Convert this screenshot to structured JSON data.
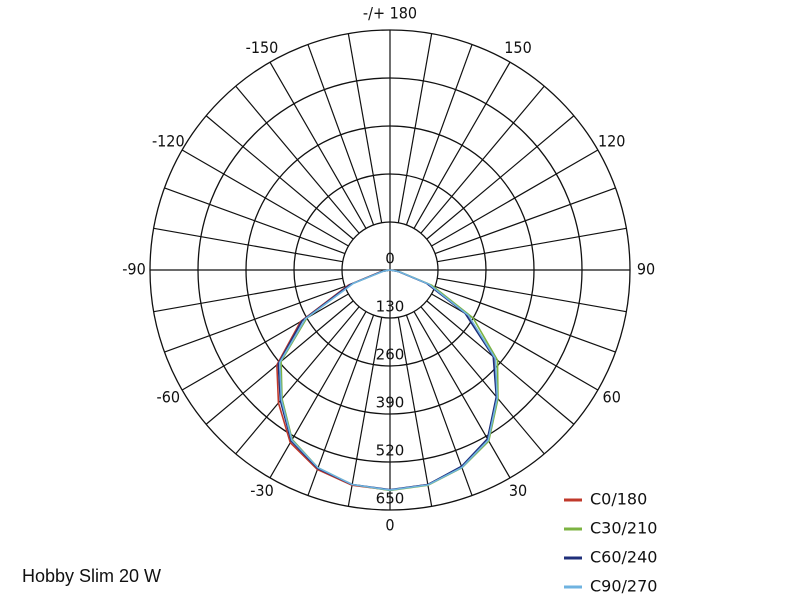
{
  "chart_data": {
    "type": "polar",
    "caption": "Hobby Slim 20 W",
    "x": [
      -90,
      -80,
      -70,
      -60,
      -50,
      -40,
      -30,
      -20,
      -10,
      0,
      10,
      20,
      30,
      40,
      50,
      60,
      70,
      80,
      90
    ],
    "rlim": [
      0,
      650
    ],
    "rticks": [
      0,
      130,
      260,
      390,
      520,
      650
    ],
    "angle_ticks": [
      0,
      30,
      60,
      90,
      120,
      150,
      {
        "value": 180,
        "label": "-/+ 180"
      },
      -150,
      -120,
      -90,
      -60,
      -30
    ],
    "grid": true,
    "legend": "lower right",
    "series": [
      {
        "name": "C0/180",
        "color": "#c0392b",
        "values": [
          0,
          25,
          120,
          280,
          400,
          470,
          540,
          575,
          592,
          596,
          590,
          568,
          530,
          450,
          370,
          240,
          110,
          25,
          0
        ]
      },
      {
        "name": "C30/210",
        "color": "#7cb342",
        "values": [
          0,
          20,
          110,
          260,
          385,
          455,
          530,
          570,
          590,
          597,
          592,
          570,
          535,
          455,
          380,
          260,
          120,
          25,
          0
        ]
      },
      {
        "name": "C60/240",
        "color": "#1f2f7a",
        "values": [
          0,
          22,
          115,
          275,
          395,
          462,
          535,
          572,
          590,
          595,
          590,
          566,
          528,
          448,
          365,
          235,
          105,
          22,
          0
        ]
      },
      {
        "name": "C90/270",
        "color": "#6fb3e0",
        "values": [
          0,
          18,
          105,
          265,
          390,
          458,
          532,
          570,
          590,
          596,
          591,
          569,
          532,
          452,
          372,
          245,
          112,
          24,
          0
        ]
      }
    ]
  }
}
